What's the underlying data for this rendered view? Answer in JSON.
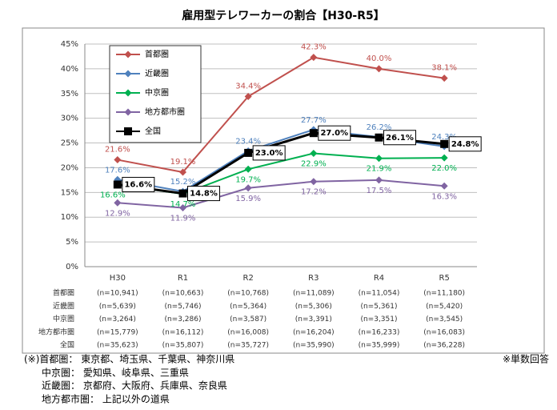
{
  "chart_data": {
    "type": "line",
    "title": "雇用型テレワーカーの割合【H30-R5】",
    "categories": [
      "H30",
      "R1",
      "R2",
      "R3",
      "R4",
      "R5"
    ],
    "ylim": [
      0,
      45
    ],
    "yticks": [
      {
        "value": 0,
        "label": "0%"
      },
      {
        "value": 5,
        "label": "5%"
      },
      {
        "value": 10,
        "label": "10%"
      },
      {
        "value": 15,
        "label": "15%"
      },
      {
        "value": 20,
        "label": "20%"
      },
      {
        "value": 25,
        "label": "25%"
      },
      {
        "value": 30,
        "label": "30%"
      },
      {
        "value": 35,
        "label": "35%"
      },
      {
        "value": 40,
        "label": "40%"
      },
      {
        "value": 45,
        "label": "45%"
      }
    ],
    "grid": true,
    "series": [
      {
        "name": "首都圏",
        "color": "#c0504d",
        "values": [
          21.6,
          19.1,
          34.4,
          42.3,
          40.0,
          38.1
        ],
        "value_labels": [
          "21.6%",
          "19.1%",
          "34.4%",
          "42.3%",
          "40.0%",
          "38.1%"
        ]
      },
      {
        "name": "近畿圏",
        "color": "#4f81bd",
        "values": [
          17.6,
          15.2,
          23.4,
          27.7,
          26.2,
          24.3
        ],
        "value_labels": [
          "17.6%",
          "15.2%",
          "23.4%",
          "27.7%",
          "26.2%",
          "24.3%"
        ]
      },
      {
        "name": "中京圏",
        "color": "#00b050",
        "values": [
          16.6,
          14.7,
          19.7,
          22.9,
          21.9,
          22.0
        ],
        "value_labels": [
          "16.6%",
          "14.7%",
          "19.7%",
          "22.9%",
          "21.9%",
          "22.0%"
        ]
      },
      {
        "name": "地方都市圏",
        "color": "#8064a2",
        "values": [
          12.9,
          11.9,
          15.9,
          17.2,
          17.5,
          16.3
        ],
        "value_labels": [
          "12.9%",
          "11.9%",
          "15.9%",
          "17.2%",
          "17.5%",
          "16.3%"
        ]
      },
      {
        "name": "全国",
        "color": "#000000",
        "values": [
          16.6,
          14.8,
          23.0,
          27.0,
          26.1,
          24.8
        ],
        "value_labels": [
          "16.6%",
          "14.8%",
          "23.0%",
          "27.0%",
          "26.1%",
          "24.8%"
        ]
      }
    ],
    "n_table": [
      {
        "label": "首都圏",
        "cells": [
          "(n=10,941)",
          "(n=10,663)",
          "(n=10,768)",
          "(n=11,089)",
          "(n=11,054)",
          "(n=11,180)"
        ]
      },
      {
        "label": "近畿圏",
        "cells": [
          "(n=5,639)",
          "(n=5,746)",
          "(n=5,364)",
          "(n=5,306)",
          "(n=5,361)",
          "(n=5,420)"
        ]
      },
      {
        "label": "中京圏",
        "cells": [
          "(n=3,264)",
          "(n=3,286)",
          "(n=3,587)",
          "(n=3,391)",
          "(n=3,351)",
          "(n=3,545)"
        ]
      },
      {
        "label": "地方都市圏",
        "cells": [
          "(n=15,779)",
          "(n=16,112)",
          "(n=16,008)",
          "(n=16,204)",
          "(n=16,233)",
          "(n=16,083)"
        ]
      },
      {
        "label": "全国",
        "cells": [
          "(n=35,623)",
          "(n=35,807)",
          "(n=35,727)",
          "(n=35,990)",
          "(n=35,999)",
          "(n=36,228)"
        ]
      }
    ]
  },
  "notes": [
    "(※)首都圏： 東京都、埼玉県、千葉県、神奈川県",
    "中京圏： 愛知県、岐阜県、三重県",
    "近畿圏： 京都府、大阪府、兵庫県、奈良県",
    "地方都市圏： 上記以外の道県"
  ],
  "side_note": "※単数回答"
}
